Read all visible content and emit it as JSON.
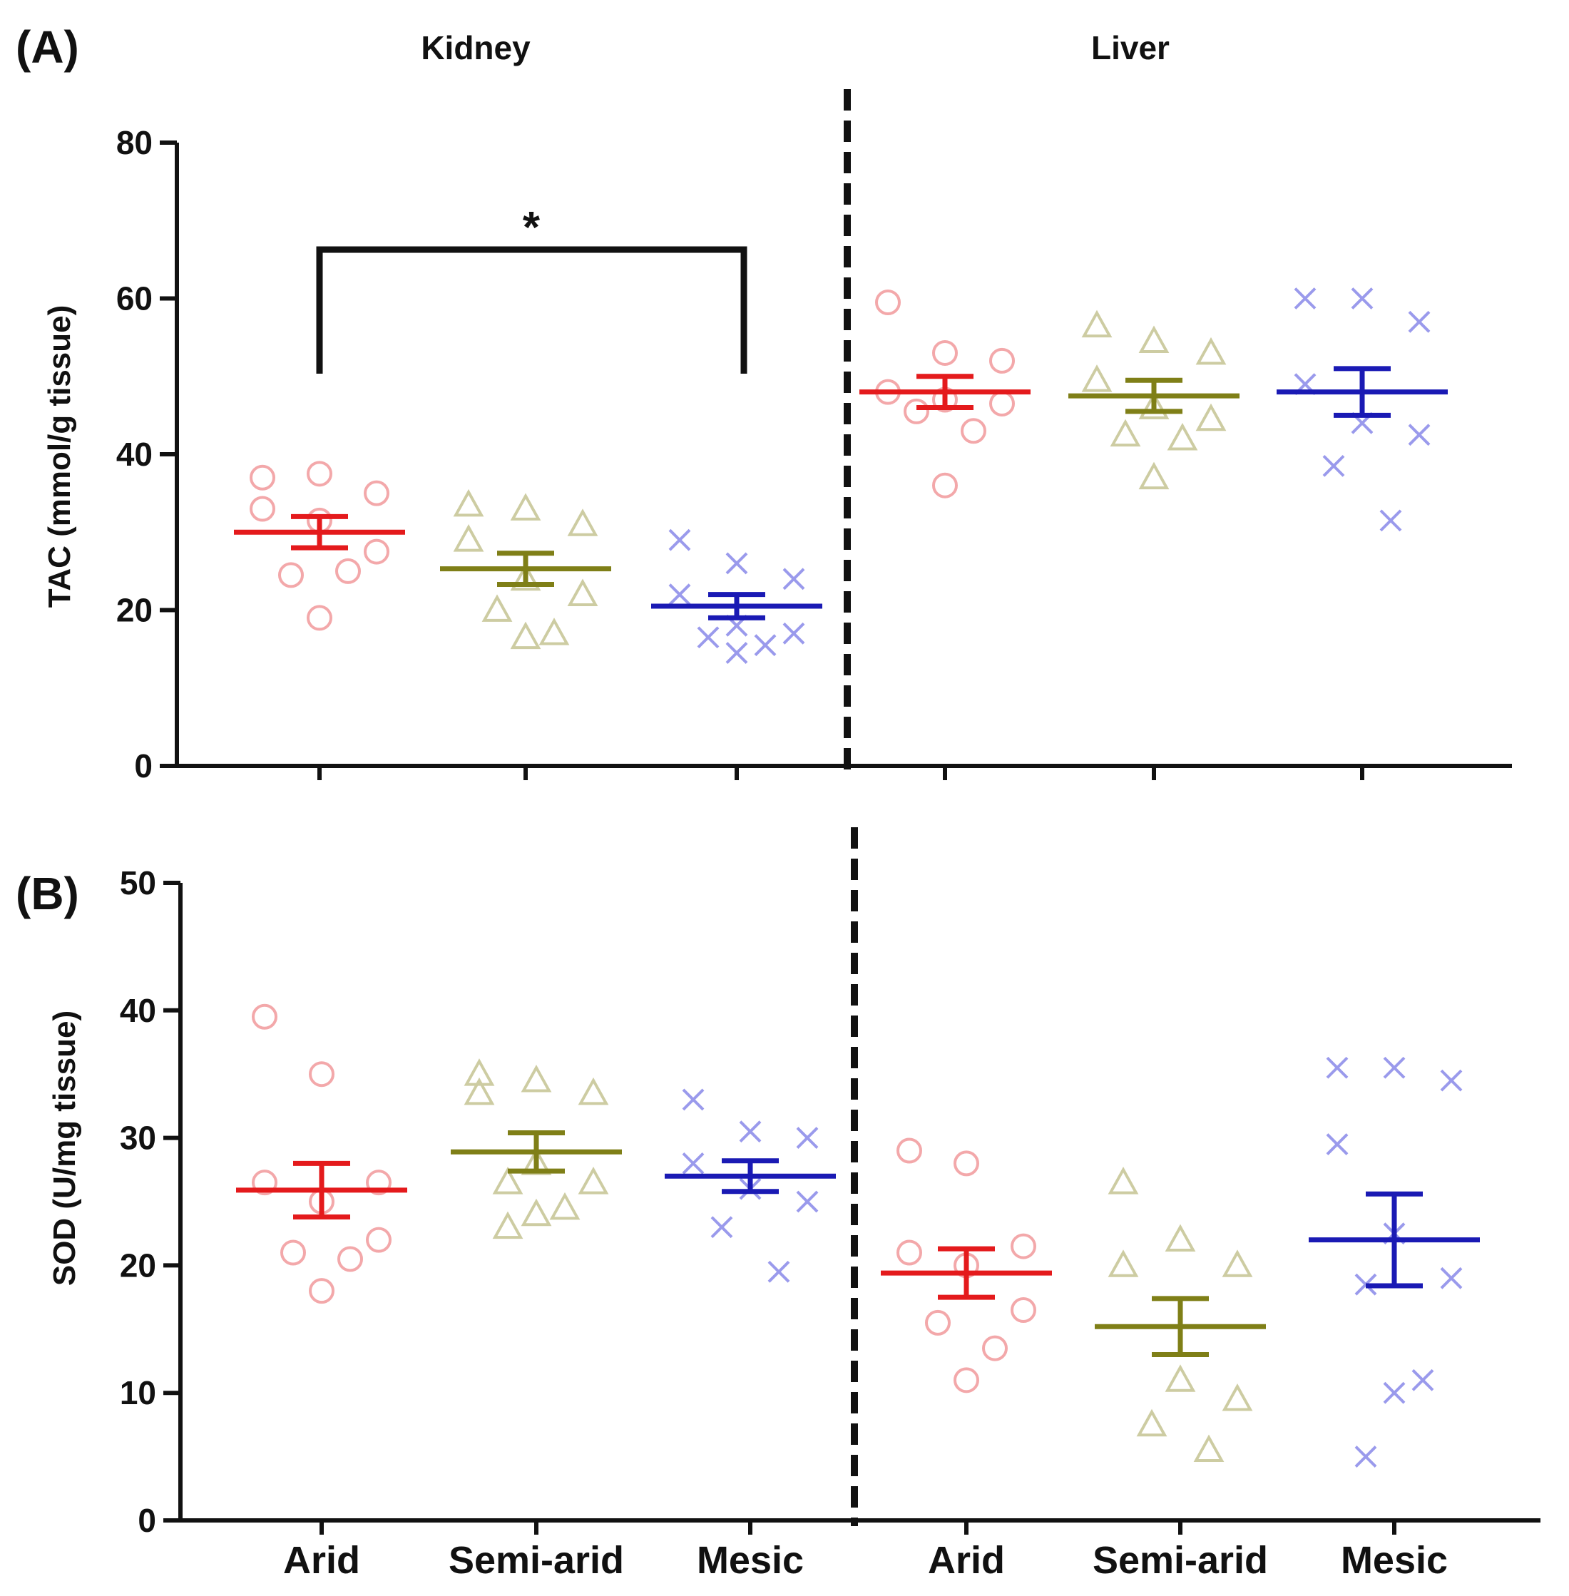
{
  "panels": {
    "A": {
      "letter": "(A)"
    },
    "B": {
      "letter": "(B)"
    }
  },
  "organs": {
    "kidney": "Kidney",
    "liver": "Liver"
  },
  "categories": [
    "Arid",
    "Semi-arid",
    "Mesic"
  ],
  "colors": {
    "Arid": {
      "mean": "#e41a1c",
      "point": "#f3a8aa"
    },
    "Semi-arid": {
      "mean": "#7f7f17",
      "point": "#cdcca2"
    },
    "Mesic": {
      "mean": "#1a1ab4",
      "point": "#9a9aec"
    }
  },
  "markers": {
    "Arid": "circle",
    "Semi-arid": "triangle",
    "Mesic": "cross"
  },
  "chart_data": [
    {
      "type": "scatter",
      "panel": "A",
      "ylabel": "TAC (mmol/g tissue)",
      "ylim": [
        0,
        80
      ],
      "yticks": [
        0,
        20,
        40,
        60,
        80
      ],
      "significance": {
        "label": "*",
        "between": [
          "Kidney Arid",
          "Kidney Mesic"
        ]
      },
      "groups": [
        {
          "organ": "Kidney",
          "category": "Arid",
          "mean": 30,
          "sem": 2,
          "points": [
            37,
            37.5,
            35,
            33,
            31.5,
            27.5,
            24.5,
            25,
            19
          ]
        },
        {
          "organ": "Kidney",
          "category": "Semi-arid",
          "mean": 25.3,
          "sem": 2,
          "points": [
            33.5,
            33,
            31,
            29,
            24,
            22,
            20,
            17,
            16.5
          ]
        },
        {
          "organ": "Kidney",
          "category": "Mesic",
          "mean": 20.5,
          "sem": 1.5,
          "points": [
            29,
            26,
            24,
            22,
            18,
            17,
            16.5,
            15.5,
            14.5
          ]
        },
        {
          "organ": "Liver",
          "category": "Arid",
          "mean": 48,
          "sem": 2,
          "points": [
            59.5,
            53,
            52,
            48,
            47,
            46.5,
            45.5,
            43,
            36
          ]
        },
        {
          "organ": "Liver",
          "category": "Semi-arid",
          "mean": 47.5,
          "sem": 2,
          "points": [
            56.5,
            54.5,
            53,
            49.5,
            46,
            44.5,
            42.5,
            42,
            37
          ]
        },
        {
          "organ": "Liver",
          "category": "Mesic",
          "mean": 48,
          "sem": 3,
          "points": [
            60,
            60,
            57,
            49,
            44,
            42.5,
            38.5,
            31.5
          ]
        }
      ]
    },
    {
      "type": "scatter",
      "panel": "B",
      "ylabel": "SOD (U/mg tissue)",
      "ylim": [
        0,
        50
      ],
      "yticks": [
        0,
        10,
        20,
        30,
        40,
        50
      ],
      "groups": [
        {
          "organ": "Kidney",
          "category": "Arid",
          "mean": 25.9,
          "sem": 2.1,
          "points": [
            39.5,
            35,
            26.5,
            26.5,
            25,
            22,
            21,
            20.5,
            18
          ]
        },
        {
          "organ": "Kidney",
          "category": "Semi-arid",
          "mean": 28.9,
          "sem": 1.5,
          "points": [
            35,
            34.5,
            33.5,
            33.5,
            28,
            26.5,
            26.5,
            24.5,
            24,
            23
          ]
        },
        {
          "organ": "Kidney",
          "category": "Mesic",
          "mean": 27,
          "sem": 1.2,
          "points": [
            33,
            30.5,
            30,
            28,
            26,
            25,
            23,
            19.5
          ]
        },
        {
          "organ": "Liver",
          "category": "Arid",
          "mean": 19.4,
          "sem": 1.9,
          "points": [
            29,
            28,
            21.5,
            21,
            20,
            16.5,
            15.5,
            13.5,
            11
          ]
        },
        {
          "organ": "Liver",
          "category": "Semi-arid",
          "mean": 15.2,
          "sem": 2.2,
          "points": [
            26.5,
            22,
            20,
            20,
            11,
            9.5,
            7.5,
            5.5
          ]
        },
        {
          "organ": "Liver",
          "category": "Mesic",
          "mean": 22,
          "sem": 3.6,
          "points": [
            35.5,
            35.5,
            34.5,
            29.5,
            22.5,
            19,
            18.5,
            11,
            10,
            5
          ]
        }
      ]
    }
  ]
}
